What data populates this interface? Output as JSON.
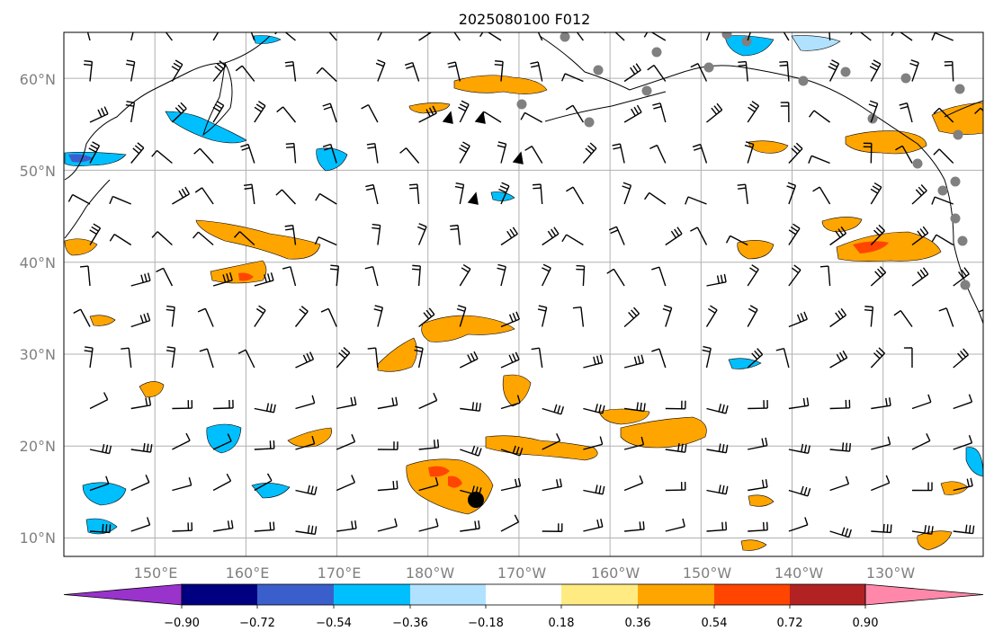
{
  "title": "2025080100 F012",
  "map": {
    "lon_range": [
      140,
      241
    ],
    "lat_range": [
      8,
      65
    ],
    "grid": true,
    "lat_labels": [
      "60°N",
      "50°N",
      "40°N",
      "30°N",
      "20°N",
      "10°N"
    ],
    "lon_labels": [
      "150°E",
      "160°E",
      "170°E",
      "180°W",
      "170°W",
      "160°W",
      "150°W",
      "140°W",
      "130°W"
    ],
    "lat_ticks": [
      60,
      50,
      40,
      30,
      20,
      10
    ],
    "lon_ticks": [
      150,
      160,
      170,
      180,
      190,
      200,
      210,
      220,
      230
    ],
    "label_color": "#808080",
    "grid_color": "#b0b0b0"
  },
  "colorbar": {
    "levels": [
      "−0.90",
      "−0.72",
      "−0.54",
      "−0.36",
      "−0.18",
      "0.18",
      "0.36",
      "0.54",
      "0.72",
      "0.90"
    ],
    "colors": [
      "#9933cc",
      "#000080",
      "#3a5fcd",
      "#00bfff",
      "#b0e2ff",
      "#ffffff",
      "#ffeb82",
      "#ffa500",
      "#ff4500",
      "#b22222",
      "#ff88aa"
    ],
    "extend": "both"
  },
  "markers": {
    "gray_dots_color": "#808080",
    "big_dot_color": "#000000"
  }
}
